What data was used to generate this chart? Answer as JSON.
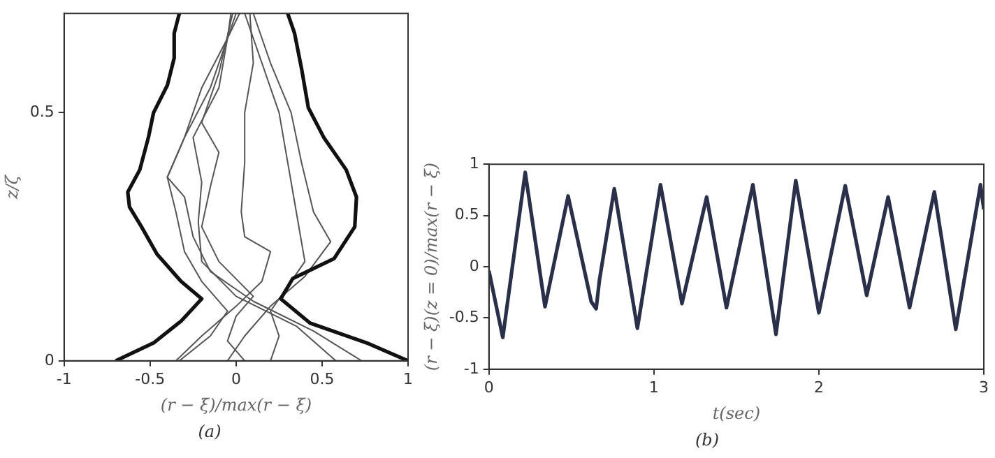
{
  "chart_data": [
    {
      "type": "line",
      "xlabel": "(r − ξ)/max(r − ξ)",
      "ylabel": "z/ζ",
      "annotations": [
        "(a)"
      ],
      "xlim": [
        -1,
        1
      ],
      "ylim": [
        0,
        0.7
      ],
      "xticks": [
        -1,
        -0.5,
        0,
        0.5,
        1
      ],
      "yticks": [
        0,
        0.5
      ],
      "grid": false,
      "series": [
        {
          "color": "#111111",
          "x": [
            -0.7,
            -0.48,
            -0.32,
            -0.2,
            -0.32,
            -0.46,
            -0.55,
            -0.62,
            -0.63,
            -0.56,
            -0.51,
            -0.48,
            -0.4,
            -0.36,
            -0.36,
            -0.33
          ],
          "values": [
            0,
            0.036,
            0.08,
            0.125,
            0.16,
            0.215,
            0.27,
            0.31,
            0.34,
            0.385,
            0.45,
            0.5,
            0.555,
            0.61,
            0.66,
            0.7
          ]
        },
        {
          "color": "#111111",
          "x": [
            1,
            0.76,
            0.43,
            0.26,
            0.33,
            0.57,
            0.69,
            0.7,
            0.64,
            0.51,
            0.42,
            0.38,
            0.34,
            0.3
          ],
          "values": [
            0,
            0.036,
            0.076,
            0.125,
            0.166,
            0.206,
            0.27,
            0.33,
            0.385,
            0.45,
            0.51,
            0.59,
            0.66,
            0.7
          ]
        },
        {
          "color": "#555555",
          "x": [
            0.73,
            0.45,
            0.1,
            -0.15,
            -0.25,
            -0.3,
            -0.4,
            -0.3,
            -0.2,
            -0.05,
            0
          ],
          "values": [
            0,
            0.06,
            0.12,
            0.18,
            0.25,
            0.33,
            0.37,
            0.45,
            0.55,
            0.65,
            0.7
          ]
        },
        {
          "color": "#555555",
          "x": [
            0.58,
            0.35,
            0,
            -0.2,
            -0.22,
            -0.2,
            -0.25,
            -0.1,
            -0.05,
            0.02
          ],
          "values": [
            0,
            0.07,
            0.13,
            0.2,
            0.28,
            0.36,
            0.45,
            0.55,
            0.65,
            0.7
          ]
        },
        {
          "color": "#555555",
          "x": [
            0.2,
            0.25,
            0.2,
            0.3,
            0.4,
            0.35,
            0.3,
            0.25,
            0.15,
            0.05
          ],
          "values": [
            0,
            0.05,
            0.1,
            0.15,
            0.2,
            0.3,
            0.4,
            0.5,
            0.6,
            0.7
          ]
        },
        {
          "color": "#555555",
          "x": [
            -0.05,
            0.05,
            0.2,
            0.4,
            0.55,
            0.45,
            0.38,
            0.32,
            0.2,
            0.1
          ],
          "values": [
            0,
            0.05,
            0.11,
            0.17,
            0.24,
            0.3,
            0.4,
            0.5,
            0.6,
            0.7
          ]
        },
        {
          "color": "#555555",
          "x": [
            -0.35,
            -0.2,
            0,
            0.15,
            0.2,
            0.05,
            0.03,
            0.05,
            0.05,
            0.1,
            0.08
          ],
          "values": [
            0,
            0.05,
            0.11,
            0.16,
            0.22,
            0.25,
            0.3,
            0.4,
            0.5,
            0.6,
            0.7
          ]
        },
        {
          "color": "#555555",
          "x": [
            -0.33,
            -0.15,
            -0.05,
            -0.2,
            -0.3,
            -0.35,
            -0.4,
            -0.3,
            -0.15,
            -0.05,
            -0.03
          ],
          "values": [
            0,
            0.05,
            0.1,
            0.16,
            0.22,
            0.3,
            0.37,
            0.45,
            0.55,
            0.65,
            0.7
          ]
        },
        {
          "color": "#555555",
          "x": [
            0.05,
            -0.05,
            0,
            0.1,
            -0.1,
            -0.2,
            -0.15,
            -0.1,
            -0.2,
            -0.1,
            -0.02
          ],
          "values": [
            0,
            0.04,
            0.09,
            0.13,
            0.2,
            0.27,
            0.35,
            0.42,
            0.48,
            0.58,
            0.7
          ]
        }
      ]
    },
    {
      "type": "line",
      "xlabel": "t(sec)",
      "ylabel": "(r − ξ)(z = 0)/max(r − ξ)",
      "annotations": [
        "(b)"
      ],
      "xlim": [
        0,
        3
      ],
      "ylim": [
        -1,
        1
      ],
      "xticks": [
        0,
        1,
        2,
        3
      ],
      "yticks": [
        -1,
        -0.5,
        0,
        0.5,
        1
      ],
      "grid": false,
      "series": [
        {
          "color": "#2a2f4a",
          "x": [
            0,
            0.084,
            0.22,
            0.34,
            0.48,
            0.62,
            0.65,
            0.67,
            0.76,
            0.9,
            1.04,
            1.17,
            1.32,
            1.44,
            1.6,
            1.74,
            1.86,
            2.0,
            2.16,
            2.29,
            2.42,
            2.55,
            2.7,
            2.83,
            2.98,
            3.0
          ],
          "values": [
            -0.04,
            -0.69,
            0.92,
            -0.39,
            0.69,
            -0.34,
            -0.41,
            -0.13,
            0.76,
            -0.6,
            0.8,
            -0.36,
            0.68,
            -0.4,
            0.8,
            -0.66,
            0.84,
            -0.45,
            0.79,
            -0.28,
            0.68,
            -0.4,
            0.73,
            -0.61,
            0.8,
            0.56
          ]
        }
      ]
    }
  ]
}
